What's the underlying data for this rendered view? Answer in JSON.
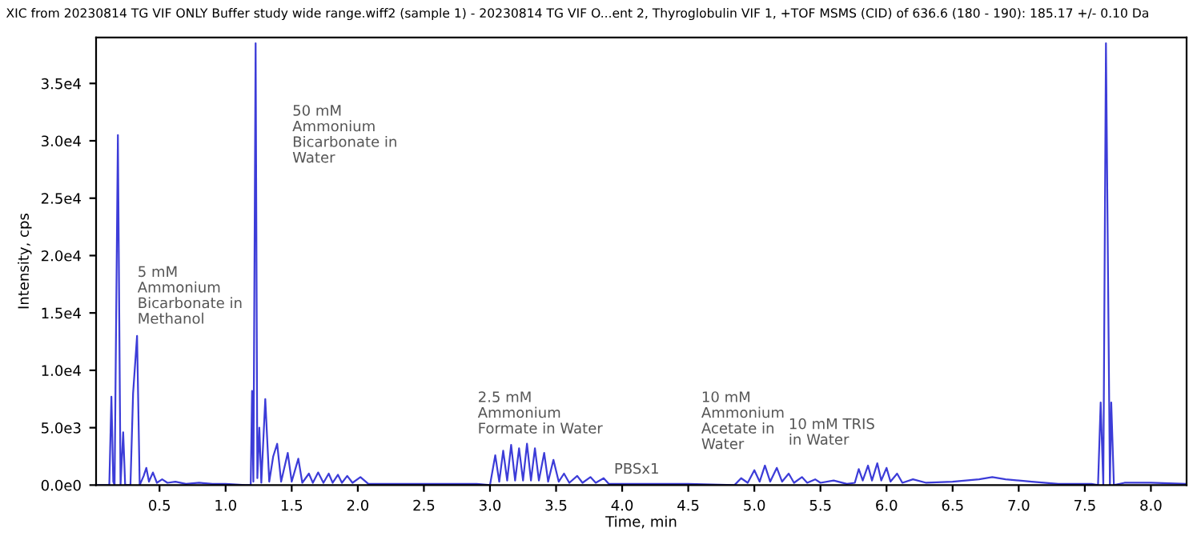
{
  "chart_data": {
    "type": "line",
    "title": "XIC from 20230814 TG VIF ONLY Buffer study wide range.wiff2 (sample 1) - 20230814 TG VIF O...ent 2, Thyroglobulin VIF 1, +TOF MSMS (CID) of 636.6 (180 - 190): 185.17 +/- 0.10 Da",
    "xlabel": "Time, min",
    "ylabel": "Intensity, cps",
    "xlim": [
      0.02,
      8.27
    ],
    "ylim": [
      0,
      39000
    ],
    "xticks": [
      {
        "value": 0.5,
        "label": "0.5"
      },
      {
        "value": 1.0,
        "label": "1.0"
      },
      {
        "value": 1.5,
        "label": "1.5"
      },
      {
        "value": 2.0,
        "label": "2.0"
      },
      {
        "value": 2.5,
        "label": "2.5"
      },
      {
        "value": 3.0,
        "label": "3.0"
      },
      {
        "value": 3.5,
        "label": "3.5"
      },
      {
        "value": 4.0,
        "label": "4.0"
      },
      {
        "value": 4.5,
        "label": "4.5"
      },
      {
        "value": 5.0,
        "label": "5.0"
      },
      {
        "value": 5.5,
        "label": "5.5"
      },
      {
        "value": 6.0,
        "label": "6.0"
      },
      {
        "value": 6.5,
        "label": "6.5"
      },
      {
        "value": 7.0,
        "label": "7.0"
      },
      {
        "value": 7.5,
        "label": "7.5"
      },
      {
        "value": 8.0,
        "label": "8.0"
      }
    ],
    "yticks": [
      {
        "value": 0,
        "label": "0.0e0"
      },
      {
        "value": 5000,
        "label": "5.0e3"
      },
      {
        "value": 10000,
        "label": "1.0e4"
      },
      {
        "value": 15000,
        "label": "1.5e4"
      },
      {
        "value": 20000,
        "label": "2.0e4"
      },
      {
        "value": 25000,
        "label": "2.5e4"
      },
      {
        "value": 30000,
        "label": "3.0e4"
      },
      {
        "value": 35000,
        "label": "3.5e4"
      }
    ],
    "grid": false,
    "legend": false,
    "marker": "none",
    "line_style": "solid",
    "annotations": [
      "5 mM\nAmmonium\nBicarbonate in\nMethanol",
      "50 mM\nAmmonium\nBicarbonate in\nWater",
      "2.5 mM\nAmmonium\nFormate in Water",
      "PBSx1",
      "10 mM\nAmmonium\nAcetate in\nWater",
      "10 mM TRIS\nin Water"
    ],
    "series": [
      {
        "color": "#3c3cd8",
        "x": [
          0.02,
          0.12,
          0.136,
          0.15,
          0.16,
          0.185,
          0.205,
          0.225,
          0.24,
          0.28,
          0.3,
          0.33,
          0.35,
          0.38,
          0.4,
          0.42,
          0.45,
          0.48,
          0.52,
          0.56,
          0.62,
          0.7,
          0.8,
          0.9,
          1.0,
          1.15,
          1.19,
          1.2,
          1.21,
          1.227,
          1.24,
          1.255,
          1.27,
          1.3,
          1.33,
          1.36,
          1.39,
          1.42,
          1.47,
          1.5,
          1.55,
          1.58,
          1.63,
          1.66,
          1.7,
          1.74,
          1.78,
          1.81,
          1.85,
          1.88,
          1.92,
          1.96,
          2.02,
          2.08,
          2.2,
          2.5,
          2.9,
          3.0,
          3.04,
          3.07,
          3.1,
          3.13,
          3.16,
          3.19,
          3.22,
          3.25,
          3.28,
          3.31,
          3.34,
          3.37,
          3.41,
          3.44,
          3.48,
          3.52,
          3.56,
          3.6,
          3.66,
          3.7,
          3.76,
          3.8,
          3.86,
          3.9,
          4.0,
          4.5,
          4.85,
          4.9,
          4.95,
          5.0,
          5.04,
          5.08,
          5.12,
          5.17,
          5.21,
          5.26,
          5.3,
          5.36,
          5.4,
          5.46,
          5.5,
          5.6,
          5.7,
          5.76,
          5.79,
          5.82,
          5.86,
          5.89,
          5.93,
          5.96,
          6.0,
          6.03,
          6.08,
          6.12,
          6.2,
          6.3,
          6.5,
          6.7,
          6.8,
          6.9,
          7.1,
          7.3,
          7.55,
          7.6,
          7.62,
          7.64,
          7.66,
          7.69,
          7.7,
          7.72,
          7.8,
          8.0,
          8.27
        ],
        "values": [
          0,
          0,
          7700,
          300,
          0,
          30500,
          0,
          4600,
          0,
          0,
          8000,
          13000,
          0,
          800,
          1500,
          300,
          1100,
          200,
          500,
          200,
          300,
          100,
          200,
          100,
          100,
          0,
          0,
          8200,
          300,
          38500,
          600,
          5000,
          200,
          7500,
          300,
          2500,
          3600,
          300,
          2800,
          300,
          2300,
          200,
          1000,
          200,
          1100,
          200,
          1000,
          200,
          900,
          200,
          800,
          200,
          700,
          100,
          100,
          100,
          100,
          0,
          2600,
          300,
          3000,
          400,
          3500,
          400,
          3200,
          400,
          3600,
          400,
          3200,
          400,
          2800,
          300,
          2200,
          300,
          1000,
          200,
          800,
          200,
          700,
          200,
          600,
          100,
          100,
          100,
          0,
          600,
          200,
          1300,
          300,
          1700,
          300,
          1500,
          300,
          1000,
          200,
          700,
          200,
          500,
          200,
          400,
          100,
          200,
          1400,
          400,
          1700,
          400,
          1900,
          400,
          1500,
          300,
          1000,
          200,
          500,
          200,
          300,
          500,
          700,
          500,
          300,
          100,
          100,
          0,
          7200,
          0,
          38500,
          0,
          7200,
          0,
          200,
          200,
          100
        ]
      }
    ]
  }
}
